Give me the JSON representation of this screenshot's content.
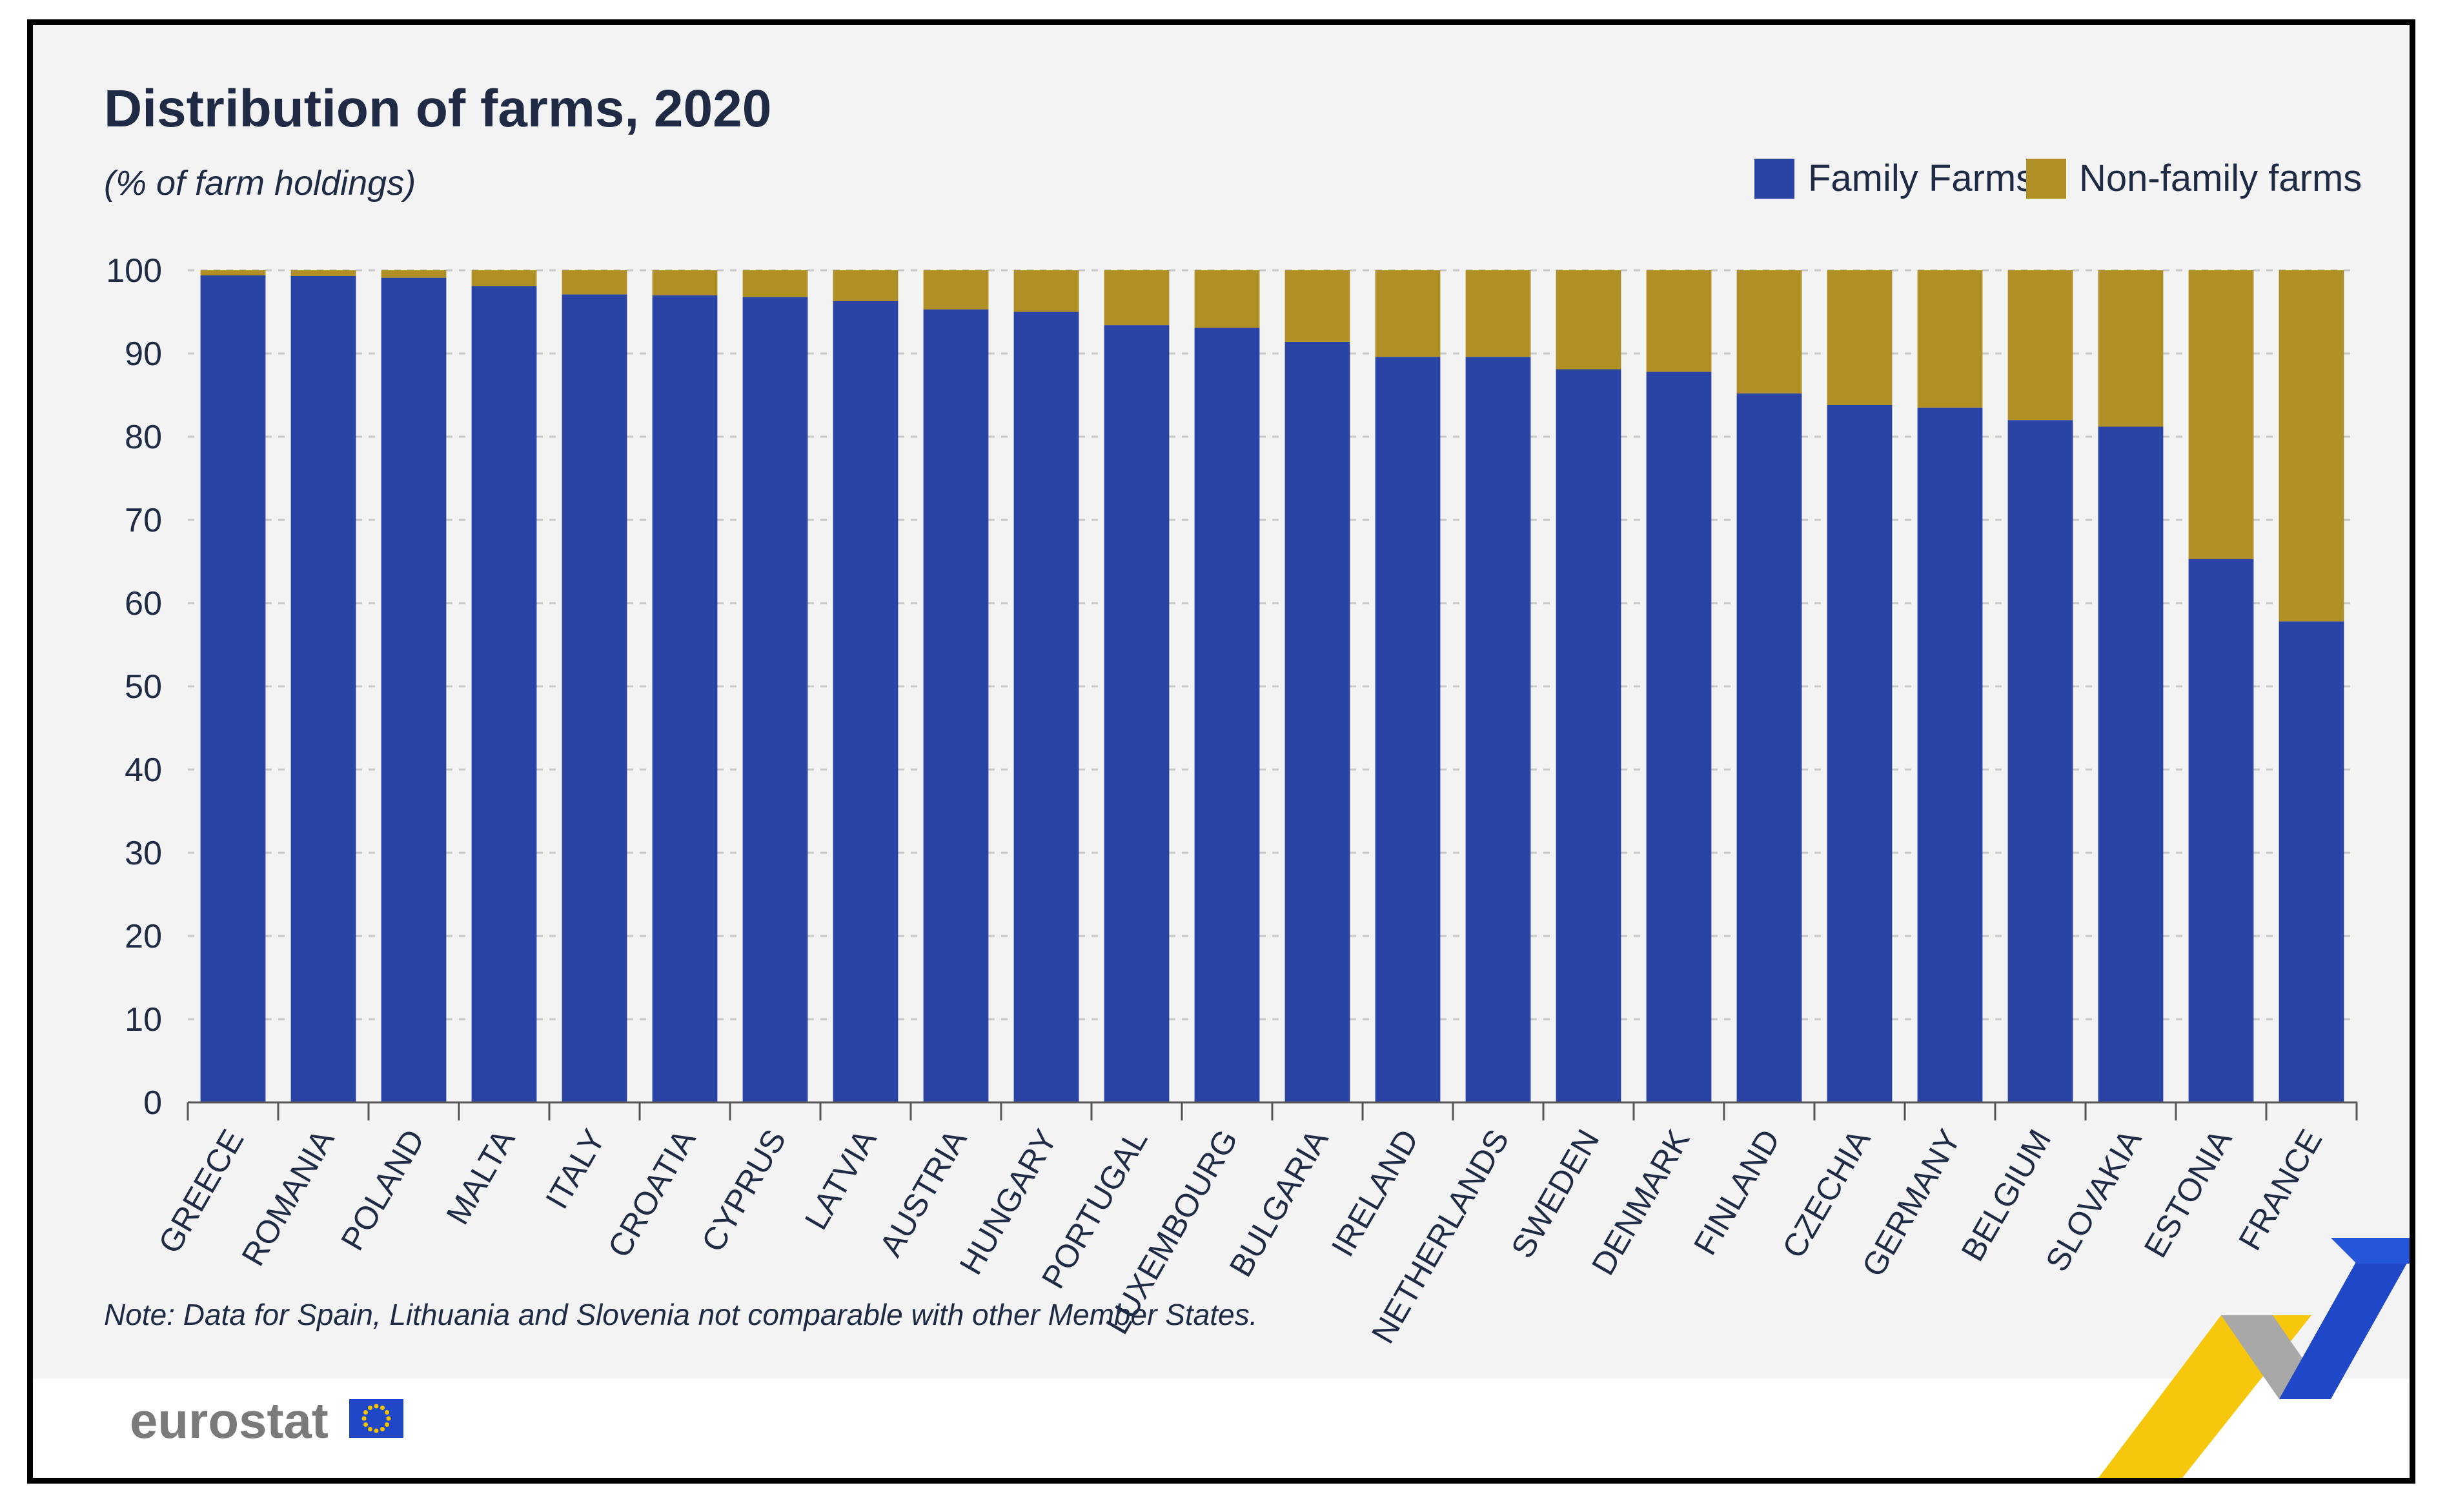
{
  "chart_data": {
    "type": "bar",
    "stacked": true,
    "title": "Distribution of farms, 2020",
    "subtitle": "(% of farm holdings)",
    "xlabel": "",
    "ylabel": "",
    "ylim": [
      0,
      100
    ],
    "yticks": [
      0,
      10,
      20,
      30,
      40,
      50,
      60,
      70,
      80,
      90,
      100
    ],
    "grid": true,
    "legend_position": "top-right",
    "categories": [
      "GREECE",
      "ROMANIA",
      "POLAND",
      "MALTA",
      "ITALY",
      "CROATIA",
      "CYPRUS",
      "LATVIA",
      "AUSTRIA",
      "HUNGARY",
      "PORTUGAL",
      "LUXEMBOURG",
      "BULGARIA",
      "IRELAND",
      "NETHERLANDS",
      "SWEDEN",
      "DENMARK",
      "FINLAND",
      "CZECHIA",
      "GERMANY",
      "BELGIUM",
      "SLOVAKIA",
      "ESTONIA",
      "FRANCE"
    ],
    "series": [
      {
        "name": "Family Farms",
        "color": "#2a44a6",
        "values": [
          99.4,
          99.3,
          99.1,
          98.1,
          97.1,
          97.0,
          96.8,
          96.3,
          95.3,
          95.0,
          93.4,
          93.1,
          91.4,
          89.6,
          89.6,
          88.1,
          87.8,
          85.2,
          83.8,
          83.5,
          82.0,
          81.2,
          65.3,
          57.8
        ]
      },
      {
        "name": "Non-family farms",
        "color": "#b08f25",
        "values": [
          0.6,
          0.7,
          0.9,
          1.9,
          2.9,
          3.0,
          3.2,
          3.7,
          4.7,
          5.0,
          6.6,
          6.9,
          8.6,
          10.4,
          10.4,
          11.9,
          12.2,
          14.8,
          16.2,
          16.5,
          18.0,
          18.8,
          34.7,
          42.2
        ]
      }
    ]
  },
  "note": "Note: Data for Spain, Lithuania and Slovenia not comparable with other Member States.",
  "brand": {
    "name": "eurostat",
    "colors": {
      "yellow": "#f5c400",
      "grey": "#9a9a9a",
      "blue": "#1f47c8",
      "eu_flag": "#1f47c8",
      "eu_stars": "#f5c400"
    }
  }
}
